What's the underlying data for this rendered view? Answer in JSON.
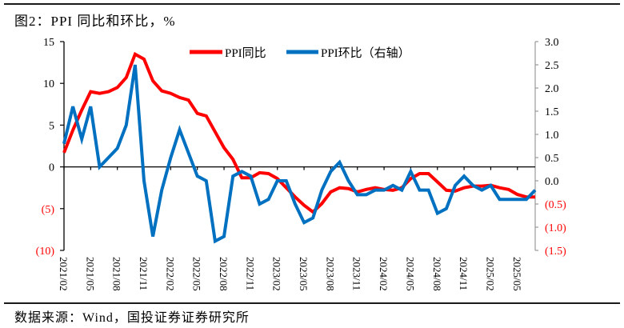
{
  "figure": {
    "title": "图2：PPI 同比和环比，%",
    "source": "数据来源：Wind，国投证券证券研究所"
  },
  "legend": {
    "items": [
      {
        "label": "PPI同比",
        "color": "#ff0000"
      },
      {
        "label": "PPI环比（右轴）",
        "color": "#0070c0"
      }
    ]
  },
  "axes": {
    "left": {
      "ticks": [
        15,
        10,
        5,
        0,
        -5,
        -10
      ],
      "labels": [
        "15",
        "10",
        "5",
        "0",
        "(5)",
        "(10)"
      ],
      "negative_color": "#ff0000",
      "range": [
        -10,
        15
      ]
    },
    "right": {
      "ticks": [
        3.0,
        2.5,
        2.0,
        1.5,
        1.0,
        0.5,
        0.0,
        -0.5,
        -1.0,
        -1.5
      ],
      "labels": [
        "3.0",
        "2.5",
        "2.0",
        "1.5",
        "1.0",
        "0.5",
        "0.0",
        "(0.5)",
        "(1.0)",
        "(1.5)"
      ],
      "negative_color": "#ff0000",
      "range": [
        -1.5,
        3.0
      ]
    },
    "x": {
      "tick_labels": [
        "2021/02",
        "2021/05",
        "2021/08",
        "2021/11",
        "2022/02",
        "2022/05",
        "2022/08",
        "2022/11",
        "2023/02",
        "2023/05",
        "2023/08",
        "2023/11",
        "2024/02",
        "2024/05",
        "2024/08",
        "2024/11",
        "2025/02",
        "2025/05"
      ]
    }
  },
  "chart_data": {
    "type": "line",
    "title": "图2：PPI 同比和环比，%",
    "xlabel": "",
    "ylabel": "%",
    "ylim": [
      -10,
      15
    ],
    "y2lim": [
      -1.5,
      3.0
    ],
    "grid": false,
    "legend_position": "top",
    "x": [
      "2021/02",
      "2021/03",
      "2021/04",
      "2021/05",
      "2021/06",
      "2021/07",
      "2021/08",
      "2021/09",
      "2021/10",
      "2021/11",
      "2021/12",
      "2022/01",
      "2022/02",
      "2022/03",
      "2022/04",
      "2022/05",
      "2022/06",
      "2022/07",
      "2022/08",
      "2022/09",
      "2022/10",
      "2022/11",
      "2022/12",
      "2023/01",
      "2023/02",
      "2023/03",
      "2023/04",
      "2023/05",
      "2023/06",
      "2023/07",
      "2023/08",
      "2023/09",
      "2023/10",
      "2023/11",
      "2023/12",
      "2024/01",
      "2024/02",
      "2024/03",
      "2024/04",
      "2024/05",
      "2024/06",
      "2024/07",
      "2024/08",
      "2024/09",
      "2024/10",
      "2024/11",
      "2024/12",
      "2025/01",
      "2025/02",
      "2025/03",
      "2025/04",
      "2025/05",
      "2025/06",
      "2025/07"
    ],
    "series": [
      {
        "name": "PPI同比",
        "axis": "left",
        "color": "#ff0000",
        "values": [
          1.7,
          4.4,
          6.8,
          9.0,
          8.8,
          9.0,
          9.5,
          10.7,
          13.5,
          12.9,
          10.3,
          9.1,
          8.8,
          8.3,
          8.0,
          6.4,
          6.1,
          4.2,
          2.3,
          0.9,
          -1.3,
          -1.3,
          -0.7,
          -0.8,
          -1.4,
          -2.5,
          -3.6,
          -4.6,
          -5.4,
          -4.4,
          -3.0,
          -2.5,
          -2.6,
          -3.0,
          -2.7,
          -2.5,
          -2.7,
          -2.8,
          -2.5,
          -1.4,
          -0.8,
          -0.8,
          -1.8,
          -2.8,
          -2.9,
          -2.5,
          -2.3,
          -2.3,
          -2.2,
          -2.5,
          -2.7,
          -3.3,
          -3.6,
          -3.6
        ]
      },
      {
        "name": "PPI环比（右轴）",
        "axis": "right",
        "color": "#0070c0",
        "values": [
          0.8,
          1.6,
          0.9,
          1.6,
          0.3,
          0.5,
          0.7,
          1.2,
          2.5,
          0.0,
          -1.2,
          -0.2,
          0.5,
          1.1,
          0.6,
          0.1,
          0.0,
          -1.3,
          -1.2,
          0.1,
          0.2,
          0.1,
          -0.5,
          -0.4,
          0.0,
          0.0,
          -0.5,
          -0.9,
          -0.8,
          -0.2,
          0.2,
          0.4,
          0.0,
          -0.3,
          -0.3,
          -0.2,
          -0.2,
          -0.1,
          -0.2,
          0.2,
          -0.2,
          -0.2,
          -0.7,
          -0.6,
          -0.1,
          0.1,
          -0.1,
          -0.2,
          -0.1,
          -0.4,
          -0.4,
          -0.4,
          -0.4,
          -0.2
        ]
      }
    ]
  }
}
